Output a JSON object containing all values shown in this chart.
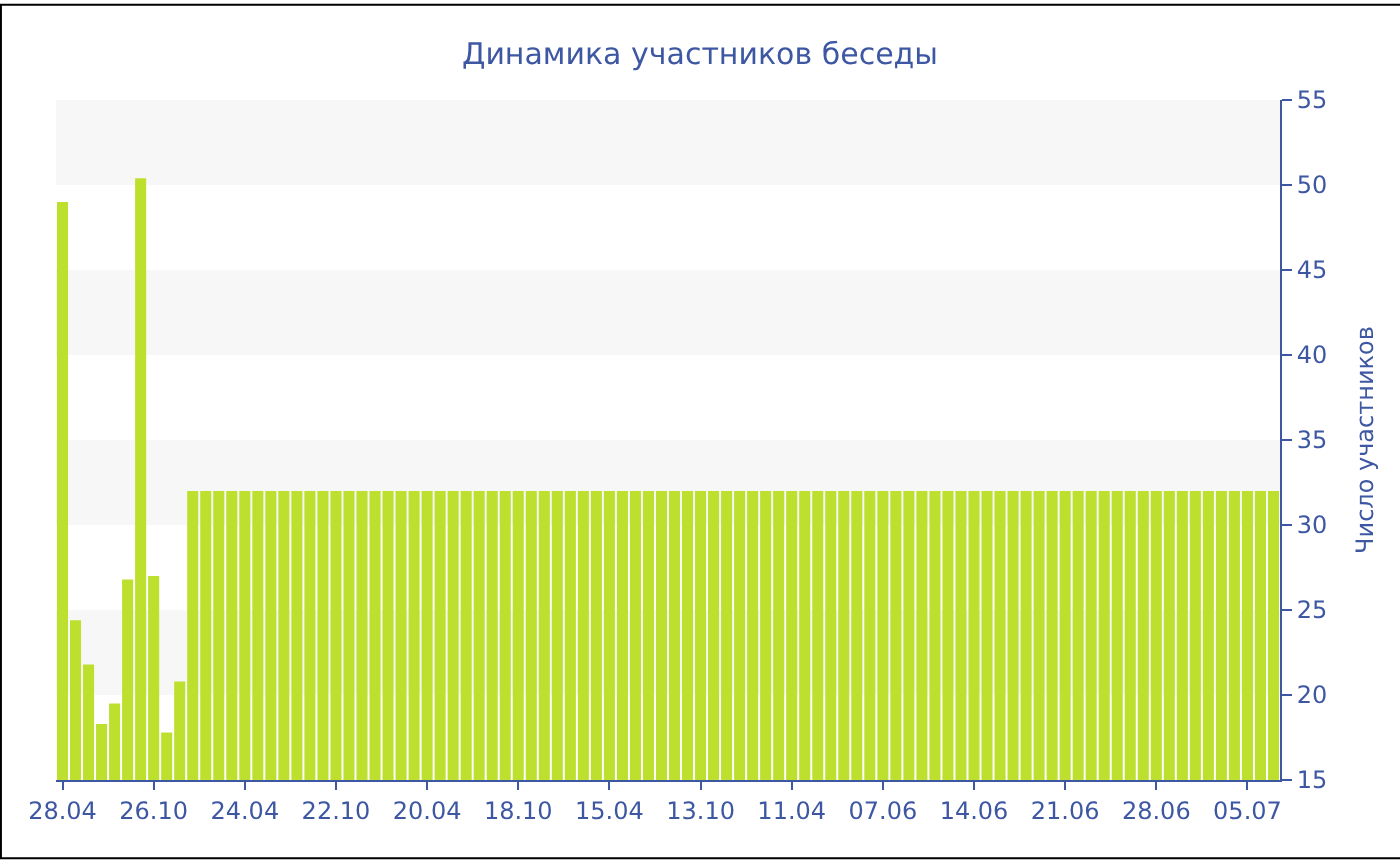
{
  "chart_data": {
    "type": "bar",
    "title": "Динамика участников беседы",
    "ylabel": "Число участников",
    "categories": [
      "28.04",
      null,
      null,
      null,
      null,
      null,
      null,
      "26.10",
      null,
      null,
      null,
      null,
      null,
      null,
      "24.04",
      null,
      null,
      null,
      null,
      null,
      null,
      "22.10",
      null,
      null,
      null,
      null,
      null,
      null,
      "20.04",
      null,
      null,
      null,
      null,
      null,
      null,
      "18.10",
      null,
      null,
      null,
      null,
      null,
      null,
      "15.04",
      null,
      null,
      null,
      null,
      null,
      null,
      "13.10",
      null,
      null,
      null,
      null,
      null,
      null,
      "11.04",
      null,
      null,
      null,
      null,
      null,
      null,
      "07.06",
      null,
      null,
      null,
      null,
      null,
      null,
      "14.06",
      null,
      null,
      null,
      null,
      null,
      null,
      "21.06",
      null,
      null,
      null,
      null,
      null,
      null,
      "28.06",
      null,
      null,
      null,
      null,
      null,
      null,
      "05.07",
      null,
      null
    ],
    "values": [
      49.0,
      24.4,
      21.8,
      18.3,
      19.5,
      26.8,
      50.4,
      27.0,
      17.8,
      20.8,
      32,
      32,
      32,
      32,
      32,
      32,
      32,
      32,
      32,
      32,
      32,
      32,
      32,
      32,
      32,
      32,
      32,
      32,
      32,
      32,
      32,
      32,
      32,
      32,
      32,
      32,
      32,
      32,
      32,
      32,
      32,
      32,
      32,
      32,
      32,
      32,
      32,
      32,
      32,
      32,
      32,
      32,
      32,
      32,
      32,
      32,
      32,
      32,
      32,
      32,
      32,
      32,
      32,
      32,
      32,
      32,
      32,
      32,
      32,
      32,
      32,
      32,
      32,
      32,
      32,
      32,
      32,
      32,
      32,
      32,
      32,
      32,
      32,
      32,
      32,
      32,
      32,
      32,
      32,
      32,
      32,
      32,
      32,
      32
    ],
    "color": "#bde02f",
    "ylim": [
      15,
      55
    ],
    "yticks": [
      15,
      20,
      25,
      30,
      35,
      40,
      45,
      50,
      55
    ],
    "bands": [
      {
        "axis": "y",
        "from": 20,
        "to": 25,
        "color": "#f7f7f7"
      },
      {
        "axis": "y",
        "from": 30,
        "to": 35,
        "color": "#f7f7f7"
      },
      {
        "axis": "y",
        "from": 40,
        "to": 45,
        "color": "#f7f7f7"
      },
      {
        "axis": "y",
        "from": 50,
        "to": 55,
        "color": "#f7f7f7"
      }
    ],
    "grid": false
  }
}
